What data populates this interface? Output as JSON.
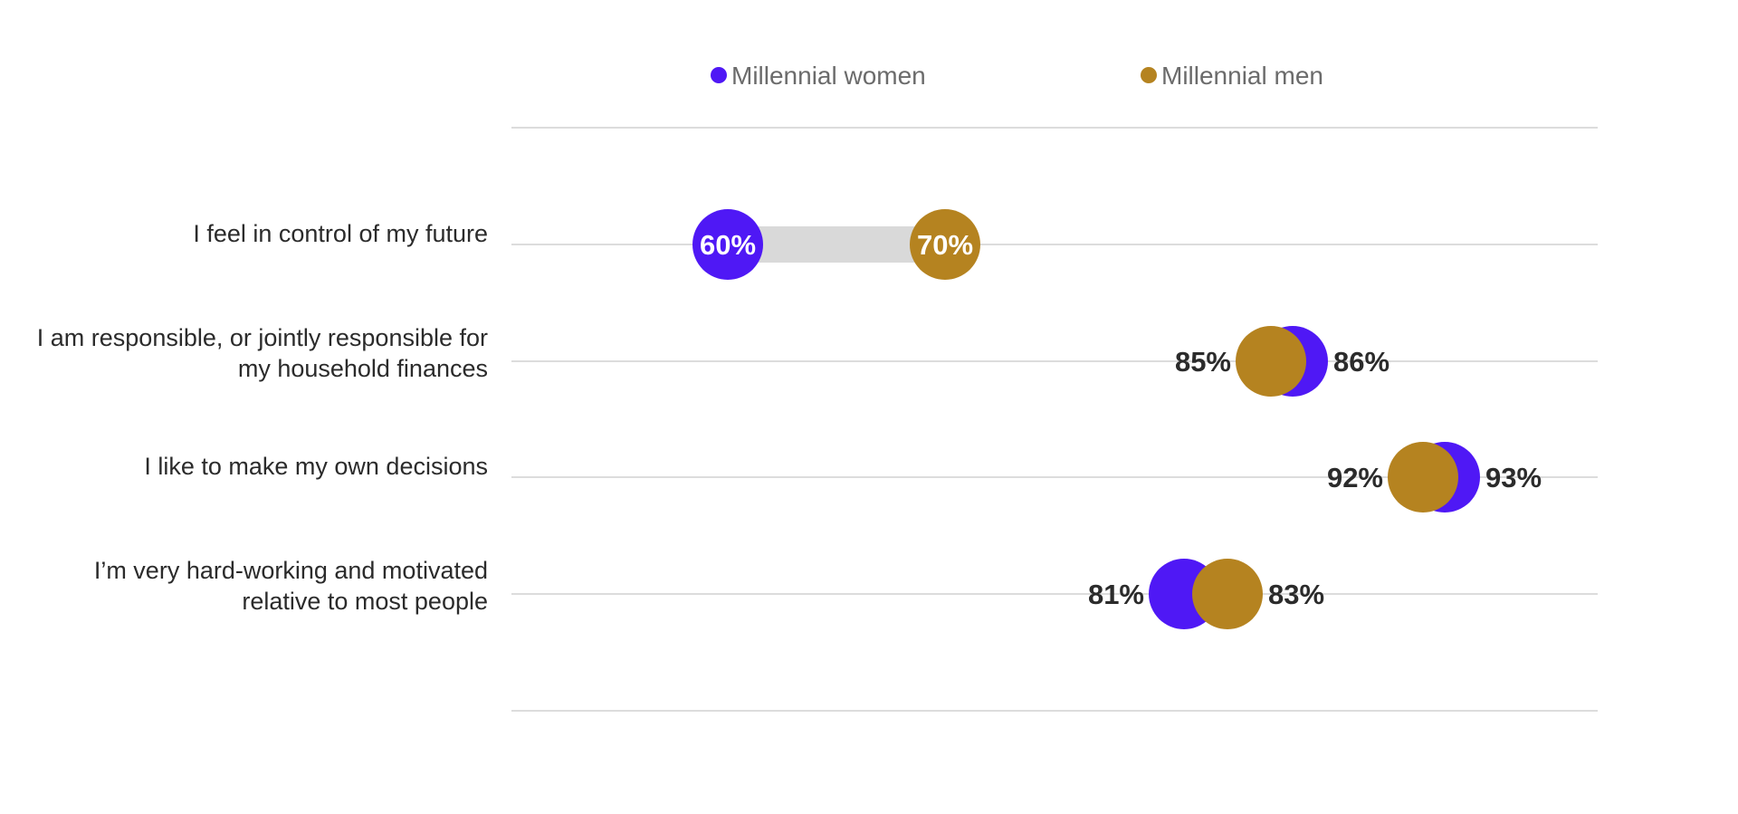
{
  "chart_data": {
    "type": "dumbbell",
    "series": [
      {
        "name": "Millennial women",
        "color": "#4f18f5",
        "values": [
          60,
          86,
          93,
          81
        ]
      },
      {
        "name": "Millennial men",
        "color": "#b58320",
        "values": [
          70,
          85,
          92,
          83
        ]
      }
    ],
    "categories": [
      [
        "I feel in control of my future"
      ],
      [
        "I am responsible, or jointly responsible for",
        "my household finances"
      ],
      [
        "I like to make my own decisions"
      ],
      [
        "I’m very hard-working and motivated",
        "relative to most people"
      ]
    ],
    "value_labels": [
      [
        "60%",
        "86%",
        "93%",
        "81%"
      ],
      [
        "70%",
        "85%",
        "92%",
        "83%"
      ]
    ],
    "connector_color": "#d9d9d9",
    "gridline_color": "#dcdcdc",
    "grid": true,
    "legend_position": "top"
  }
}
